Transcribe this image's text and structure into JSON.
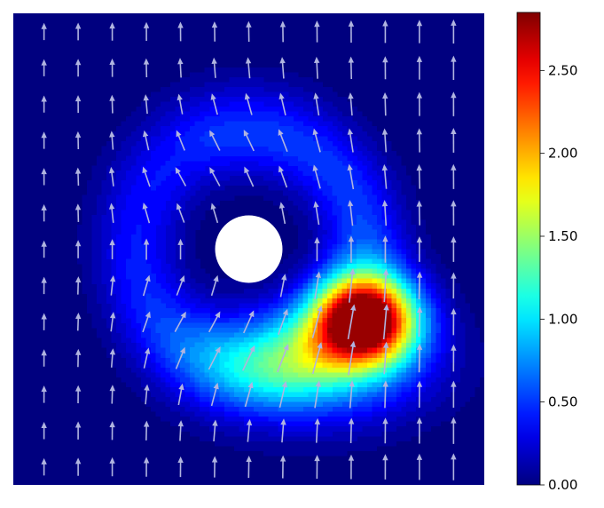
{
  "chart_data": {
    "type": "heatmap",
    "subtype": "filled contour with quiver (vector field) overlay",
    "title": "",
    "xlabel": "",
    "ylabel": "",
    "axes_visible": false,
    "grid": false,
    "colormap": "jet",
    "colorbar": {
      "position": "right",
      "range": [
        0.0,
        2.85
      ],
      "ticks": [
        0.0,
        0.5,
        1.0,
        1.5,
        2.0,
        2.5
      ],
      "tick_labels": [
        "0.00",
        "0.50",
        "1.00",
        "1.50",
        "2.00",
        "2.50"
      ]
    },
    "field_peak": {
      "value": 2.85,
      "x": 0.75,
      "y": 0.35
    },
    "obstacle": {
      "shape": "circle",
      "color": "#ffffff",
      "x": 0.5,
      "y": 0.5,
      "radius": 0.072
    },
    "quiver": {
      "color": "#b0b4e0",
      "general_direction": "upward"
    }
  }
}
